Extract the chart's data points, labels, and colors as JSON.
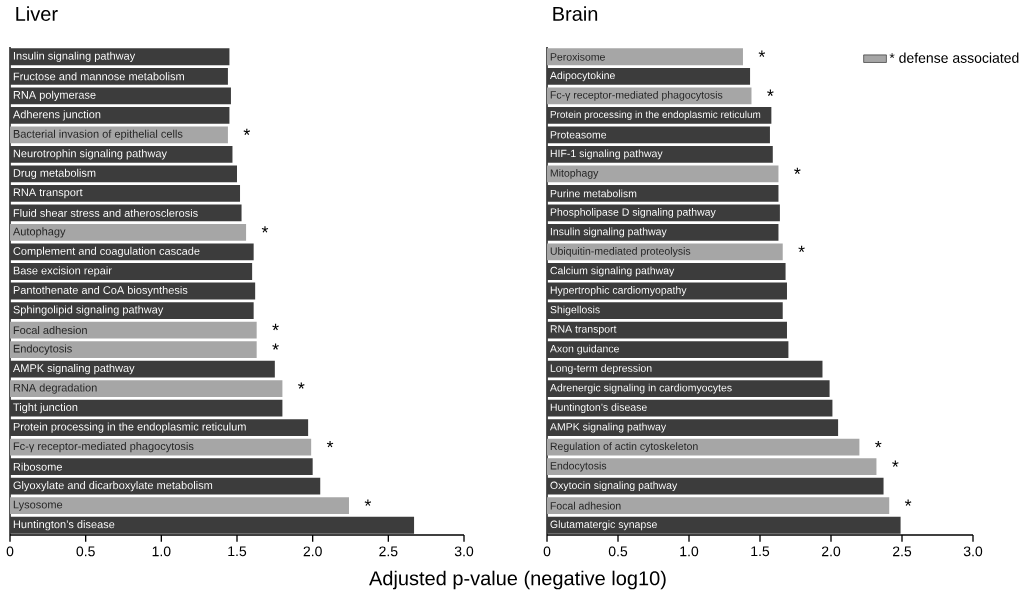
{
  "chart_data": [
    {
      "type": "bar",
      "orientation": "horizontal",
      "title": "Liver",
      "xlabel": "Adjusted p-value (negative log10)",
      "categories": [
        "Insulin signaling pathway",
        "Fructose and mannose metabolism",
        "RNA polymerase",
        "Adherens junction",
        "Bacterial invasion of epithelial cells",
        "Neurotrophin signaling pathway",
        "Drug metabolism",
        "RNA transport",
        "Fluid shear stress and atherosclerosis",
        "Autophagy",
        "Complement and coagulation cascade",
        "Base excision repair",
        "Pantothenate and CoA biosynthesis",
        "Sphingolipid signaling pathway",
        "Focal adhesion",
        "Endocytosis",
        "AMPK signaling pathway",
        "RNA degradation",
        "Tight junction",
        "Protein processing in the endoplasmic reticulum",
        "Fc-γ receptor-mediated phagocytosis",
        "Ribosome",
        "Glyoxylate and dicarboxylate metabolism",
        "Lysosome",
        "Huntington’s disease"
      ],
      "series": [
        {
          "color": "#a6a6a6",
          "values": [
            null,
            null,
            null,
            null,
            1.44,
            null,
            null,
            null,
            null,
            1.56,
            null,
            null,
            null,
            null,
            1.63,
            1.63,
            null,
            1.8,
            null,
            null,
            1.99,
            null,
            null,
            2.24,
            null
          ],
          "value_labels": [
            null,
            null,
            null,
            null,
            "*",
            null,
            null,
            null,
            null,
            "*",
            null,
            null,
            null,
            null,
            "*",
            "*",
            null,
            "*",
            null,
            null,
            "*",
            null,
            null,
            "*",
            null
          ]
        },
        {
          "color": "#3c3c3c",
          "values": [
            1.45,
            1.44,
            1.46,
            1.45,
            null,
            1.47,
            1.5,
            1.52,
            1.53,
            null,
            1.61,
            1.6,
            1.62,
            1.61,
            null,
            null,
            1.75,
            null,
            1.8,
            1.97,
            null,
            2.0,
            2.05,
            null,
            2.67
          ]
        }
      ],
      "xlim": [
        0,
        3
      ],
      "xticks": [
        0,
        0.5,
        {
          "value": 1,
          "label": "1.0"
        },
        1.5,
        {
          "value": 2,
          "label": "2.0"
        },
        2.5,
        {
          "value": 3,
          "label": "3.0"
        }
      ]
    },
    {
      "type": "bar",
      "orientation": "horizontal",
      "title": "Brain",
      "legend": "top right",
      "categories": [
        "Peroxisome",
        "Adipocytokine",
        "Fc-γ receptor-mediated phagocytosis",
        "Protein processing in the endoplasmic reticulum",
        "Proteasome",
        "HIF-1 signaling pathway",
        "Mitophagy",
        "Purine metabolism",
        "Phospholipase D signaling pathway",
        "Insulin signaling pathway",
        "Ubiquitin-mediated proteolysis",
        "Calcium signaling pathway",
        "Hypertrophic cardiomyopathy",
        "Shigellosis",
        "RNA transport",
        "Axon guidance",
        "Long-term depression",
        "Adrenergic signaling in cardiomyocytes",
        "Huntington’s disease",
        "AMPK signaling pathway",
        "Regulation of actin cytoskeleton",
        "Endocytosis",
        "Oxytocin signaling pathway",
        "Focal adhesion",
        "Glutamatergic synapse"
      ],
      "series": [
        {
          "name": "* defense associated",
          "color": "#a6a6a6",
          "values": [
            1.38,
            null,
            1.44,
            null,
            null,
            null,
            1.63,
            null,
            null,
            null,
            1.66,
            null,
            null,
            null,
            null,
            null,
            null,
            null,
            null,
            null,
            2.2,
            2.32,
            null,
            2.41,
            null
          ],
          "value_labels": [
            "*",
            null,
            "*",
            null,
            null,
            null,
            "*",
            null,
            null,
            null,
            "*",
            null,
            null,
            null,
            null,
            null,
            null,
            null,
            null,
            null,
            "*",
            "*",
            null,
            "*",
            null
          ]
        },
        {
          "color": "#3c3c3c",
          "values": [
            null,
            1.43,
            null,
            1.58,
            1.57,
            1.59,
            null,
            1.63,
            1.64,
            1.63,
            null,
            1.68,
            1.69,
            1.66,
            1.69,
            1.7,
            1.94,
            1.99,
            2.01,
            2.05,
            null,
            null,
            2.37,
            null,
            2.49
          ]
        }
      ],
      "xlim": [
        0,
        3
      ],
      "xticks": [
        0,
        0.5,
        {
          "value": 1,
          "label": "1.0"
        },
        1.5,
        {
          "value": 2,
          "label": "2.0"
        },
        2.5,
        {
          "value": 3,
          "label": "3.0"
        }
      ]
    }
  ]
}
